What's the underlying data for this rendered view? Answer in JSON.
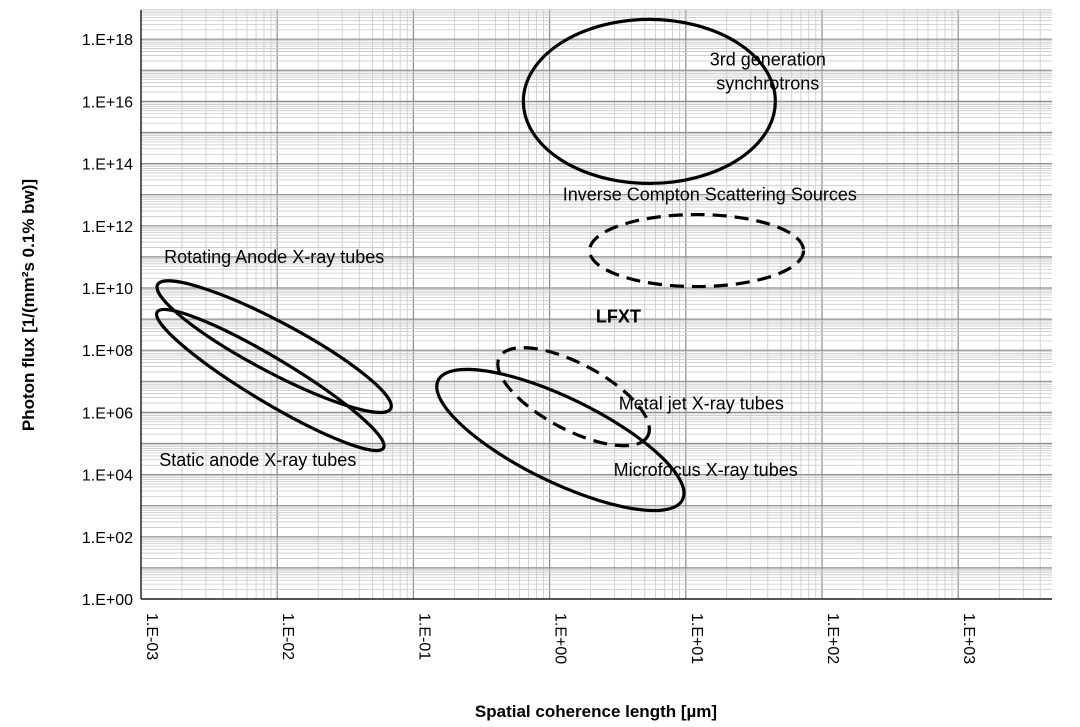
{
  "chart_data": {
    "type": "scatter",
    "title": "",
    "xlabel": "Spatial coherence length [µm]",
    "ylabel": "Photon flux [1/(mm²s 0.1% bw)]",
    "x_scale": "log",
    "y_scale": "log",
    "xlim": [
      0.001,
      5000
    ],
    "ylim": [
      1,
      1e+19
    ],
    "grid": true,
    "x_ticks": [
      {
        "value": 0.001,
        "label": "1.E-03"
      },
      {
        "value": 0.01,
        "label": "1.E-02"
      },
      {
        "value": 0.1,
        "label": "1.E-01"
      },
      {
        "value": 1,
        "label": "1.E+00"
      },
      {
        "value": 10,
        "label": "1.E+01"
      },
      {
        "value": 100,
        "label": "1.E+02"
      },
      {
        "value": 1000,
        "label": "1.E+03"
      }
    ],
    "y_ticks": [
      {
        "value": 1,
        "label": "1.E+00"
      },
      {
        "value": 100,
        "label": "1.E+02"
      },
      {
        "value": 10000,
        "label": "1.E+04"
      },
      {
        "value": 1000000,
        "label": "1.E+06"
      },
      {
        "value": 100000000,
        "label": "1.E+08"
      },
      {
        "value": 10000000000,
        "label": "1.E+10"
      },
      {
        "value": 1000000000000,
        "label": "1.E+12"
      },
      {
        "value": 100000000000000,
        "label": "1.E+14"
      },
      {
        "value": 10000000000000000,
        "label": "1.E+16"
      },
      {
        "value": 1000000000000000000,
        "label": "1.E+18"
      }
    ],
    "regions": [
      {
        "label": "3rd generation synchrotrons",
        "label_lines": [
          "3rd generation",
          "synchrotrons"
        ],
        "style": "solid",
        "center_x": 5.4,
        "center_y": 1e+16,
        "label_x": 40,
        "label_y": 1e+17
      },
      {
        "label": "Inverse Compton Scattering Sources",
        "style": "dashed",
        "center_x": 12,
        "center_y": 160000000000.0,
        "label_x": 15,
        "label_y": 10000000000000.0
      },
      {
        "label": "Rotating Anode X-ray tubes",
        "style": "solid",
        "center_x": 0.0095,
        "center_y": 130000000.0,
        "label_x": 0.0095,
        "label_y": 100000000000.0
      },
      {
        "label": "Static anode X-ray tubes",
        "style": "solid",
        "center_x": 0.0089,
        "center_y": 11000000.0,
        "label_x": 0.0072,
        "label_y": 30000.0
      },
      {
        "label": "Metal jet X-ray tubes",
        "style": "dashed",
        "center_x": 1.5,
        "center_y": 3200000.0,
        "label_x": 13,
        "label_y": 1900000.0
      },
      {
        "label": "Microfocus X-ray tubes",
        "style": "solid",
        "center_x": 1.2,
        "center_y": 130000.0,
        "label_x": 14,
        "label_y": 14000.0
      },
      {
        "label": "LFXT",
        "style": "point",
        "center_x": 3.2,
        "center_y": 1200000000.0,
        "label_x": 3.2,
        "label_y": 1200000000.0
      }
    ],
    "label_color": "#000000",
    "highlight_color": "#e8191e",
    "grid_major_color": "#8c8c8c",
    "grid_minor_color": "#c8c8c8"
  }
}
